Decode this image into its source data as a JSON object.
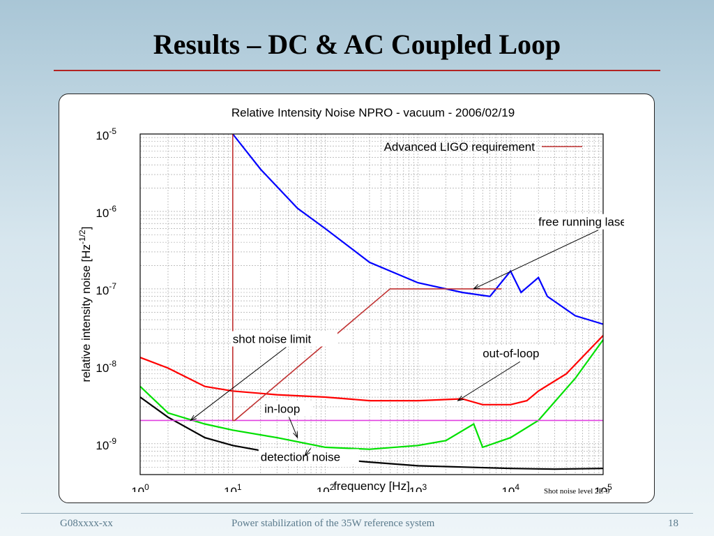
{
  "slide": {
    "title": "Results – DC & AC Coupled Loop",
    "footer_left": "G08xxxx-xx",
    "footer_center": "Power stabilization of the 35W reference system",
    "page_number": "18",
    "note": "Shot noise level 2E-9"
  },
  "colors": {
    "requirement": "#c03030",
    "free_running": "#0000ff",
    "out_of_loop": "#ff0000",
    "in_loop": "#00e000",
    "detection": "#000000",
    "shot_noise": "#e040e0",
    "title_rule": "#b22222"
  },
  "chart_data": {
    "type": "line",
    "title": "Relative Intensity Noise NPRO - vacuum - 2006/02/19",
    "xlabel": "frequency [Hz]",
    "ylabel": "relative intensity noise [Hz^-1/2]",
    "xscale": "log",
    "yscale": "log",
    "xlim": [
      1,
      100000
    ],
    "ylim": [
      4e-10,
      1e-05
    ],
    "grid": true,
    "x_ticks": [
      {
        "base": "10",
        "exp": "0"
      },
      {
        "base": "10",
        "exp": "1"
      },
      {
        "base": "10",
        "exp": "2"
      },
      {
        "base": "10",
        "exp": "3"
      },
      {
        "base": "10",
        "exp": "4"
      },
      {
        "base": "10",
        "exp": "5"
      }
    ],
    "y_ticks": [
      {
        "base": "10",
        "exp": "-5"
      },
      {
        "base": "10",
        "exp": "-6"
      },
      {
        "base": "10",
        "exp": "-7"
      },
      {
        "base": "10",
        "exp": "-8"
      },
      {
        "base": "10",
        "exp": "-9"
      }
    ],
    "legend": {
      "position": "top-right",
      "entries": [
        "Advanced LIGO requirement"
      ]
    },
    "series": [
      {
        "name": "Advanced LIGO requirement",
        "x": [
          10,
          10,
          10.5,
          500,
          8000
        ],
        "y": [
          1e-05,
          2e-09,
          2e-09,
          1e-07,
          1e-07
        ]
      },
      {
        "name": "free running laser",
        "x": [
          10,
          20,
          50,
          100,
          300,
          1000,
          3000,
          6000,
          10000,
          13000,
          20000,
          25000,
          50000,
          100000
        ],
        "y": [
          1e-05,
          3.5e-06,
          1.1e-06,
          6e-07,
          2.2e-07,
          1.2e-07,
          9e-08,
          8e-08,
          1.7e-07,
          9e-08,
          1.4e-07,
          8e-08,
          4.5e-08,
          3.5e-08
        ]
      },
      {
        "name": "out-of-loop",
        "x": [
          1,
          2,
          5,
          10,
          30,
          100,
          300,
          1000,
          3000,
          5000,
          10000,
          15000,
          20000,
          40000,
          100000
        ],
        "y": [
          1.3e-08,
          9.5e-09,
          5.5e-09,
          4.8e-09,
          4.3e-09,
          4e-09,
          3.6e-09,
          3.6e-09,
          3.8e-09,
          3.2e-09,
          3.2e-09,
          3.6e-09,
          4.8e-09,
          8e-09,
          2.5e-08
        ]
      },
      {
        "name": "in-loop",
        "x": [
          1,
          2,
          5,
          10,
          30,
          100,
          300,
          1000,
          2000,
          4000,
          5000,
          10000,
          20000,
          50000,
          100000
        ],
        "y": [
          5.5e-09,
          2.5e-09,
          1.8e-09,
          1.5e-09,
          1.2e-09,
          9e-10,
          8.5e-10,
          9.5e-10,
          1.1e-09,
          1.8e-09,
          9e-10,
          1.2e-09,
          2e-09,
          7e-09,
          2.2e-08
        ]
      },
      {
        "name": "detection noise",
        "x": [
          1,
          2,
          5,
          10,
          30,
          100,
          300,
          1000,
          3000,
          10000,
          30000,
          100000
        ],
        "y": [
          4e-09,
          2.2e-09,
          1.2e-09,
          9.5e-10,
          7.5e-10,
          6.5e-10,
          5.8e-10,
          5.2e-10,
          5e-10,
          4.8e-10,
          4.7e-10,
          4.8e-10
        ]
      },
      {
        "name": "shot noise limit",
        "x": [
          1,
          100000
        ],
        "y": [
          2e-09,
          2e-09
        ]
      }
    ],
    "annotations": [
      {
        "text": "free running laser",
        "x": 20000,
        "y": 6.5e-07,
        "arrow_to": [
          4000,
          1e-07
        ]
      },
      {
        "text": "out-of-loop",
        "x": 5000,
        "y": 1.3e-08,
        "arrow_to": [
          2700,
          3.6e-09
        ]
      },
      {
        "text": "shot noise limit",
        "x": 10,
        "y": 2e-08,
        "arrow_to": [
          3.5,
          2e-09
        ]
      },
      {
        "text": "in-loop",
        "x": 22,
        "y": 2.5e-09,
        "arrow_to": [
          50,
          1.2e-09
        ]
      },
      {
        "text": "detection noise",
        "x": 20,
        "y": 6e-10,
        "arrow_to": [
          60,
          7e-10
        ]
      }
    ]
  }
}
